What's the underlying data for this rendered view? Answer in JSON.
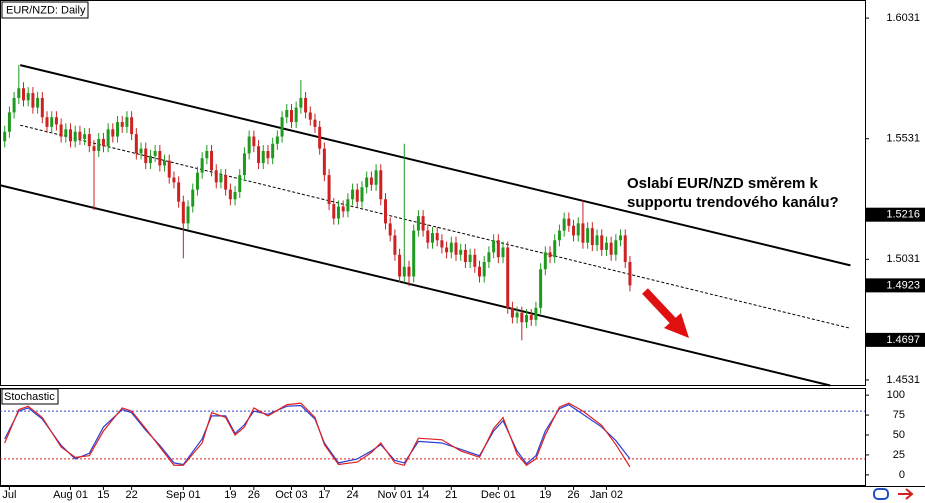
{
  "chart_data": [
    {
      "type": "candlestick",
      "title": "EUR/NZD: Daily",
      "xlim": [
        -1,
        183
      ],
      "ylim": [
        1.451,
        1.6106
      ],
      "yticks": [
        1.6031,
        1.5531,
        1.5031,
        1.4531
      ],
      "xticks": [
        {
          "value": 1,
          "label": "Jul"
        },
        {
          "value": 14,
          "label": "Aug 01"
        },
        {
          "value": 21,
          "label": "15"
        },
        {
          "value": 27,
          "label": "22"
        },
        {
          "value": 38,
          "label": "Sep 01"
        },
        {
          "value": 48,
          "label": "19"
        },
        {
          "value": 53,
          "label": "26"
        },
        {
          "value": 61,
          "label": "Oct 03"
        },
        {
          "value": 68,
          "label": "17"
        },
        {
          "value": 74,
          "label": "24"
        },
        {
          "value": 83,
          "label": "Nov 01"
        },
        {
          "value": 89,
          "label": "14"
        },
        {
          "value": 95,
          "label": "21"
        },
        {
          "value": 105,
          "label": "Dec 01"
        },
        {
          "value": 115,
          "label": "19"
        },
        {
          "value": 121,
          "label": "26"
        },
        {
          "value": 128,
          "label": "Jan 02"
        }
      ],
      "up_color": "#1f9a1f",
      "down_color": "#cc2222",
      "open": [
        1.552,
        1.556,
        1.564,
        1.57,
        1.574,
        1.569,
        1.572,
        1.566,
        1.57,
        1.562,
        1.558,
        1.562,
        1.559,
        1.554,
        1.557,
        1.552,
        1.556,
        1.553,
        1.555,
        1.55,
        1.548,
        1.553,
        1.55,
        1.557,
        1.554,
        1.56,
        1.558,
        1.562,
        1.555,
        1.547,
        1.549,
        1.543,
        1.546,
        1.548,
        1.542,
        1.544,
        1.537,
        1.535,
        1.527,
        1.518,
        1.525,
        1.532,
        1.539,
        1.545,
        1.548,
        1.54,
        1.535,
        1.538,
        1.532,
        1.528,
        1.531,
        1.538,
        1.547,
        1.554,
        1.55,
        1.543,
        1.548,
        1.545,
        1.551,
        1.554,
        1.562,
        1.565,
        1.56,
        1.566,
        1.57,
        1.564,
        1.561,
        1.558,
        1.549,
        1.538,
        1.526,
        1.52,
        1.525,
        1.523,
        1.528,
        1.532,
        1.527,
        1.533,
        1.537,
        1.534,
        1.54,
        1.528,
        1.518,
        1.513,
        1.505,
        1.496,
        1.5,
        1.496,
        1.515,
        1.521,
        1.515,
        1.51,
        1.514,
        1.511,
        1.508,
        1.506,
        1.51,
        1.505,
        1.507,
        1.502,
        1.505,
        1.5,
        1.496,
        1.502,
        1.506,
        1.511,
        1.504,
        1.508,
        1.483,
        1.479,
        1.481,
        1.477,
        1.48,
        1.478,
        1.483,
        1.499,
        1.506,
        1.504,
        1.511,
        1.515,
        1.52,
        1.517,
        1.513,
        1.518,
        1.51,
        1.516,
        1.509,
        1.513,
        1.507,
        1.51,
        1.505,
        1.511,
        1.513,
        1.502
      ],
      "high": [
        1.5585,
        1.5665,
        1.5725,
        1.5836,
        1.5765,
        1.5745,
        1.5745,
        1.5725,
        1.5725,
        1.5645,
        1.5645,
        1.5645,
        1.5615,
        1.5595,
        1.5595,
        1.5585,
        1.5585,
        1.5575,
        1.5575,
        1.5525,
        1.5555,
        1.5555,
        1.5595,
        1.5595,
        1.5625,
        1.5625,
        1.5645,
        1.5645,
        1.5575,
        1.5515,
        1.5515,
        1.5485,
        1.5505,
        1.5505,
        1.5465,
        1.5465,
        1.5395,
        1.5375,
        1.5295,
        1.5275,
        1.5345,
        1.5415,
        1.5475,
        1.5505,
        1.5505,
        1.5425,
        1.5405,
        1.5405,
        1.5345,
        1.5335,
        1.5405,
        1.5495,
        1.5565,
        1.5565,
        1.5525,
        1.5505,
        1.5505,
        1.5535,
        1.5565,
        1.5645,
        1.5675,
        1.5675,
        1.5685,
        1.5774,
        1.5725,
        1.5665,
        1.5635,
        1.5605,
        1.5515,
        1.5405,
        1.5285,
        1.5275,
        1.5275,
        1.5305,
        1.5345,
        1.5345,
        1.5355,
        1.5395,
        1.5395,
        1.5425,
        1.5425,
        1.5305,
        1.5205,
        1.5155,
        1.5075,
        1.551,
        1.5025,
        1.5175,
        1.5235,
        1.5235,
        1.5175,
        1.5165,
        1.5165,
        1.5135,
        1.5105,
        1.5125,
        1.5125,
        1.5095,
        1.5095,
        1.5075,
        1.5075,
        1.5025,
        1.5045,
        1.5085,
        1.5135,
        1.5135,
        1.5105,
        1.5105,
        1.4855,
        1.4835,
        1.4835,
        1.4825,
        1.4825,
        1.4855,
        1.5015,
        1.5085,
        1.5085,
        1.5135,
        1.5175,
        1.5225,
        1.5225,
        1.5195,
        1.5205,
        1.5276,
        1.5185,
        1.5185,
        1.5155,
        1.5155,
        1.5125,
        1.5125,
        1.5135,
        1.5155,
        1.5155,
        1.5045
      ],
      "low": [
        1.5495,
        1.5535,
        1.5615,
        1.5675,
        1.5665,
        1.5665,
        1.5635,
        1.5635,
        1.5595,
        1.5555,
        1.5555,
        1.5565,
        1.5515,
        1.5515,
        1.5495,
        1.5495,
        1.5505,
        1.5505,
        1.5475,
        1.5235,
        1.5455,
        1.5475,
        1.5475,
        1.5515,
        1.5515,
        1.5555,
        1.5555,
        1.5525,
        1.5445,
        1.5445,
        1.5405,
        1.5405,
        1.5435,
        1.5395,
        1.5395,
        1.5345,
        1.5325,
        1.5245,
        1.5035,
        1.5155,
        1.5225,
        1.5295,
        1.5365,
        1.5425,
        1.5375,
        1.5325,
        1.5325,
        1.5295,
        1.5255,
        1.5255,
        1.5285,
        1.5355,
        1.5445,
        1.5475,
        1.5405,
        1.5405,
        1.5425,
        1.5425,
        1.5485,
        1.5515,
        1.5595,
        1.5575,
        1.5575,
        1.5635,
        1.5615,
        1.5585,
        1.5555,
        1.5465,
        1.5355,
        1.5235,
        1.5175,
        1.5175,
        1.5205,
        1.5205,
        1.5255,
        1.5245,
        1.5245,
        1.5305,
        1.5315,
        1.5315,
        1.5255,
        1.5155,
        1.5105,
        1.5025,
        1.4935,
        1.4935,
        1.492,
        1.4935,
        1.5125,
        1.5125,
        1.5075,
        1.5075,
        1.5085,
        1.5055,
        1.5035,
        1.5035,
        1.5025,
        1.5025,
        1.4995,
        1.4995,
        1.4975,
        1.4935,
        1.4935,
        1.4995,
        1.5035,
        1.5015,
        1.5015,
        1.4805,
        1.4765,
        1.4765,
        1.4695,
        1.4745,
        1.4755,
        1.4755,
        1.4805,
        1.4965,
        1.5015,
        1.5015,
        1.5085,
        1.5125,
        1.5145,
        1.5105,
        1.5105,
        1.5075,
        1.5075,
        1.5065,
        1.5065,
        1.5045,
        1.5045,
        1.5025,
        1.5025,
        1.5085,
        1.4995,
        1.4898
      ],
      "close": [
        1.556,
        1.564,
        1.57,
        1.574,
        1.569,
        1.572,
        1.566,
        1.57,
        1.562,
        1.558,
        1.562,
        1.559,
        1.554,
        1.557,
        1.552,
        1.556,
        1.553,
        1.555,
        1.55,
        1.548,
        1.553,
        1.55,
        1.557,
        1.554,
        1.56,
        1.558,
        1.562,
        1.555,
        1.547,
        1.549,
        1.543,
        1.546,
        1.548,
        1.542,
        1.544,
        1.537,
        1.535,
        1.527,
        1.518,
        1.525,
        1.532,
        1.539,
        1.545,
        1.548,
        1.54,
        1.535,
        1.538,
        1.532,
        1.528,
        1.531,
        1.538,
        1.547,
        1.554,
        1.55,
        1.543,
        1.548,
        1.545,
        1.551,
        1.554,
        1.562,
        1.565,
        1.56,
        1.566,
        1.57,
        1.564,
        1.561,
        1.558,
        1.549,
        1.538,
        1.526,
        1.52,
        1.525,
        1.523,
        1.528,
        1.532,
        1.527,
        1.533,
        1.537,
        1.534,
        1.54,
        1.528,
        1.518,
        1.513,
        1.505,
        1.496,
        1.5,
        1.496,
        1.515,
        1.521,
        1.515,
        1.51,
        1.514,
        1.511,
        1.508,
        1.506,
        1.51,
        1.505,
        1.507,
        1.502,
        1.505,
        1.5,
        1.496,
        1.502,
        1.506,
        1.511,
        1.504,
        1.508,
        1.483,
        1.479,
        1.481,
        1.477,
        1.48,
        1.478,
        1.483,
        1.499,
        1.506,
        1.504,
        1.511,
        1.515,
        1.52,
        1.517,
        1.513,
        1.518,
        1.51,
        1.516,
        1.509,
        1.513,
        1.507,
        1.51,
        1.505,
        1.511,
        1.513,
        1.502,
        1.4923
      ],
      "price_markers": [
        1.5216,
        1.4923,
        1.4697
      ],
      "trend_lines": [
        {
          "style": "solid",
          "x": [
            3.3,
            179.9
          ],
          "values": [
            1.5836,
            1.5006
          ]
        },
        {
          "style": "solid",
          "x": [
            -1,
            175.6
          ],
          "values": [
            1.5338,
            1.4508
          ]
        },
        {
          "style": "dashed",
          "x": [
            3.3,
            179.9
          ],
          "values": [
            1.5587,
            1.4745
          ]
        }
      ],
      "annotation": [
        "Oslabí EUR/NZD směrem k",
        "supportu trendového kanálu?"
      ]
    },
    {
      "type": "line",
      "title": "Stochastic",
      "ylim": [
        -14,
        109
      ],
      "yticks": [
        100,
        75,
        50,
        25,
        0
      ],
      "x": [
        0,
        3,
        5,
        8,
        12,
        15,
        18,
        21,
        25,
        27,
        30,
        33,
        36,
        38,
        42,
        44,
        47,
        49,
        51,
        53,
        56,
        60,
        63,
        66,
        68,
        71,
        75,
        78,
        80,
        83,
        85,
        88,
        93,
        97,
        101,
        104,
        106,
        109,
        111,
        113,
        115,
        118,
        120,
        123,
        127,
        130,
        133
      ],
      "series": [
        {
          "color": "#2b3fd6",
          "values": [
            45,
            80,
            84,
            70,
            37,
            20,
            27,
            60,
            82,
            78,
            56,
            37,
            15,
            13,
            45,
            74,
            74,
            52,
            63,
            80,
            76,
            86,
            87,
            70,
            40,
            15,
            20,
            30,
            38,
            18,
            15,
            42,
            40,
            32,
            24,
            55,
            68,
            30,
            14,
            24,
            55,
            83,
            88,
            76,
            60,
            43,
            20
          ]
        },
        {
          "color": "#e02020",
          "values": [
            40,
            82,
            86,
            72,
            35,
            22,
            24,
            55,
            84,
            80,
            58,
            35,
            12,
            12,
            40,
            78,
            72,
            50,
            60,
            84,
            74,
            88,
            90,
            72,
            38,
            13,
            16,
            28,
            40,
            15,
            12,
            46,
            44,
            30,
            22,
            58,
            72,
            26,
            12,
            20,
            50,
            85,
            90,
            80,
            62,
            38,
            10
          ]
        }
      ],
      "levels": [
        {
          "value": 80,
          "color": "#3344cc"
        },
        {
          "value": 20,
          "color": "#dd2222"
        }
      ]
    }
  ]
}
